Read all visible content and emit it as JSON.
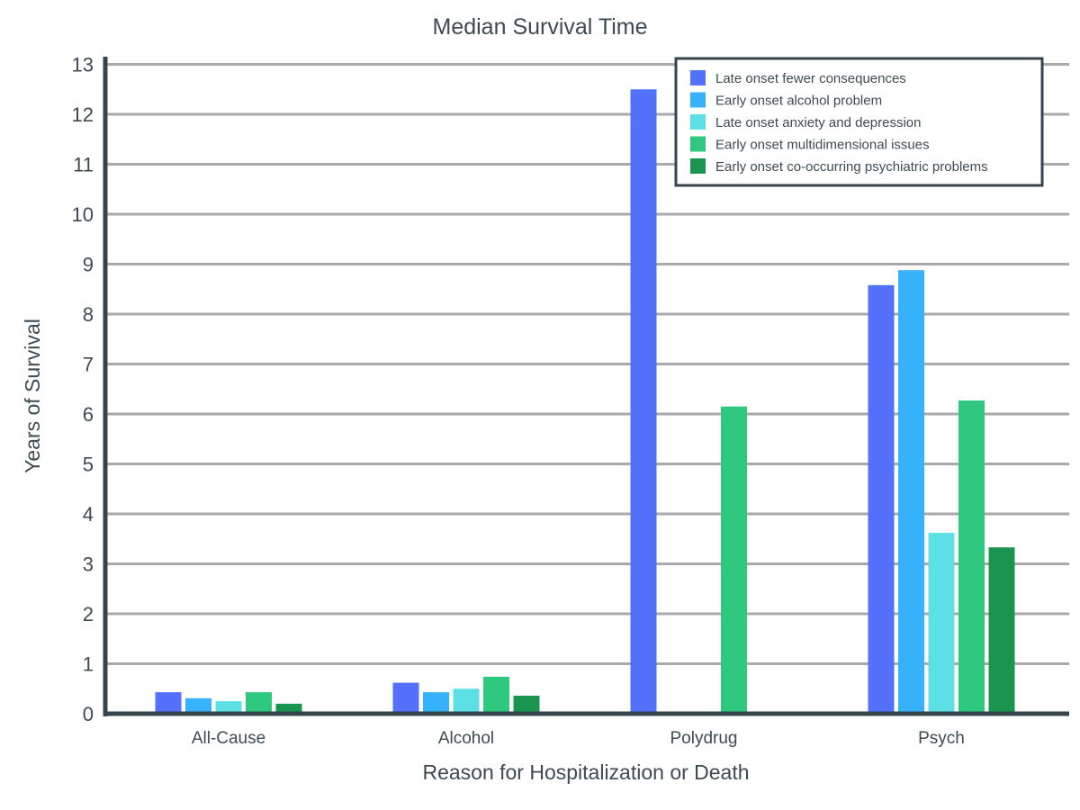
{
  "chart_data": {
    "type": "bar",
    "title": "Median Survival Time",
    "xlabel": "Reason for Hospitalization or Death",
    "ylabel": "Years of Survival",
    "ylim": [
      0,
      13
    ],
    "yticks": [
      "0",
      "1",
      "2",
      "3",
      "4",
      "5",
      "6",
      "7",
      "8",
      "9",
      "10",
      "11",
      "12",
      "13"
    ],
    "grid": true,
    "legend_position": "top-right",
    "categories": [
      "All-Cause",
      "Alcohol",
      "Polydrug",
      "Psych"
    ],
    "series": [
      {
        "name": "Late onset fewer consequences",
        "color": "#5471fd",
        "values": [
          0.43,
          0.62,
          12.5,
          8.58
        ]
      },
      {
        "name": "Early onset alcohol problem",
        "color": "#35b2fb",
        "values": [
          0.31,
          0.43,
          null,
          8.88
        ]
      },
      {
        "name": "Late onset anxiety and depression",
        "color": "#5ce0e6",
        "values": [
          0.25,
          0.5,
          null,
          3.62
        ]
      },
      {
        "name": "Early onset multidimensional issues",
        "color": "#2ec97e",
        "values": [
          0.43,
          0.74,
          6.15,
          6.27
        ]
      },
      {
        "name": "Early onset co-occurring psychiatric problems",
        "color": "#1a9550",
        "values": [
          0.2,
          0.36,
          null,
          3.33
        ]
      }
    ]
  }
}
